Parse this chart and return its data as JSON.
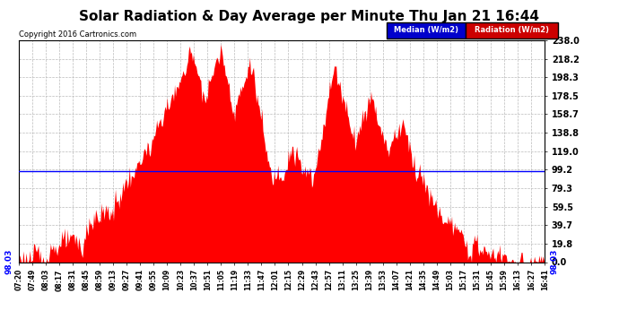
{
  "title": "Solar Radiation & Day Average per Minute Thu Jan 21 16:44",
  "copyright": "Copyright 2016 Cartronics.com",
  "median_value": 98.03,
  "yticks": [
    0.0,
    19.8,
    39.7,
    59.5,
    79.3,
    99.2,
    119.0,
    138.8,
    158.7,
    178.5,
    198.3,
    218.2,
    238.0
  ],
  "ylim": [
    0,
    238.0
  ],
  "fill_color": "#FF0000",
  "line_color": "#0000FF",
  "background_color": "#FFFFFF",
  "grid_color": "#BBBBBB",
  "title_fontsize": 11,
  "legend_median_bg": "#0000CC",
  "legend_radiation_bg": "#CC0000",
  "xtick_labels": [
    "07:20",
    "07:49",
    "08:03",
    "08:17",
    "08:31",
    "08:45",
    "08:59",
    "09:13",
    "09:27",
    "09:41",
    "09:55",
    "10:09",
    "10:23",
    "10:37",
    "10:51",
    "11:05",
    "11:19",
    "11:33",
    "11:47",
    "12:01",
    "12:15",
    "12:29",
    "12:43",
    "12:57",
    "13:11",
    "13:25",
    "13:39",
    "13:53",
    "14:07",
    "14:21",
    "14:35",
    "14:49",
    "15:03",
    "15:17",
    "15:31",
    "15:45",
    "15:59",
    "16:13",
    "16:27",
    "16:41"
  ],
  "n_points": 561
}
